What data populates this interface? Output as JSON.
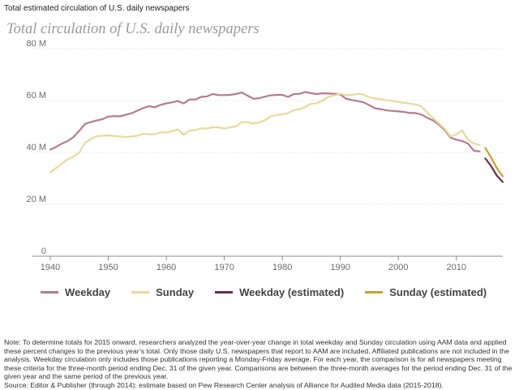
{
  "header": {
    "caption": "Total estimated circulation of U.S. daily newspapers"
  },
  "chart_data": {
    "type": "line",
    "title": "Total circulation of U.S. daily newspapers",
    "xlabel": "",
    "ylabel": "",
    "xlim": [
      1940,
      2018
    ],
    "ylim": [
      0,
      80
    ],
    "x_ticks": [
      1940,
      1950,
      1960,
      1970,
      1980,
      1990,
      2000,
      2010
    ],
    "y_ticks": [
      {
        "value": 0,
        "label": "0"
      },
      {
        "value": 20,
        "label": "20 M"
      },
      {
        "value": 40,
        "label": "40 M"
      },
      {
        "value": 60,
        "label": "60 M"
      },
      {
        "value": 80,
        "label": "80 M"
      }
    ],
    "series": [
      {
        "name": "Weekday",
        "color": "#b87a8c",
        "dashed": false,
        "x": [
          1940,
          1941,
          1942,
          1943,
          1944,
          1945,
          1946,
          1947,
          1948,
          1949,
          1950,
          1951,
          1952,
          1953,
          1954,
          1955,
          1956,
          1957,
          1958,
          1959,
          1960,
          1961,
          1962,
          1963,
          1964,
          1965,
          1966,
          1967,
          1968,
          1969,
          1970,
          1971,
          1972,
          1973,
          1974,
          1975,
          1976,
          1977,
          1978,
          1979,
          1980,
          1981,
          1982,
          1983,
          1984,
          1985,
          1986,
          1987,
          1988,
          1989,
          1990,
          1991,
          1992,
          1993,
          1994,
          1995,
          1996,
          1997,
          1998,
          1999,
          2000,
          2001,
          2002,
          2003,
          2004,
          2005,
          2006,
          2007,
          2008,
          2009,
          2010,
          2011,
          2012,
          2013,
          2014
        ],
        "values": [
          41.1,
          42.1,
          43.4,
          44.4,
          45.9,
          48.4,
          51.0,
          51.7,
          52.3,
          52.8,
          53.8,
          54.0,
          53.9,
          54.5,
          55.1,
          56.1,
          57.1,
          57.8,
          57.4,
          58.3,
          58.9,
          59.3,
          59.8,
          58.9,
          60.4,
          60.4,
          61.4,
          61.6,
          62.5,
          62.1,
          62.1,
          62.2,
          62.5,
          63.1,
          61.9,
          60.7,
          60.9,
          61.5,
          62.0,
          62.2,
          62.2,
          61.4,
          62.5,
          62.6,
          63.3,
          62.8,
          62.5,
          62.8,
          62.7,
          62.6,
          62.3,
          60.7,
          60.2,
          59.8,
          59.3,
          58.2,
          57.0,
          56.7,
          56.2,
          56.0,
          55.8,
          55.6,
          55.2,
          55.2,
          54.6,
          53.3,
          52.3,
          50.7,
          48.6,
          45.7,
          44.9,
          44.4,
          43.4,
          40.7,
          40.4
        ]
      },
      {
        "name": "Sunday",
        "color": "#ead99a",
        "dashed": false,
        "x": [
          1940,
          1941,
          1942,
          1943,
          1944,
          1945,
          1946,
          1947,
          1948,
          1949,
          1950,
          1951,
          1952,
          1953,
          1954,
          1955,
          1956,
          1957,
          1958,
          1959,
          1960,
          1961,
          1962,
          1963,
          1964,
          1965,
          1966,
          1967,
          1968,
          1969,
          1970,
          1971,
          1972,
          1973,
          1974,
          1975,
          1976,
          1977,
          1978,
          1979,
          1980,
          1981,
          1982,
          1983,
          1984,
          1985,
          1986,
          1987,
          1988,
          1989,
          1990,
          1991,
          1992,
          1993,
          1994,
          1995,
          1996,
          1997,
          1998,
          1999,
          2000,
          2001,
          2002,
          2003,
          2004,
          2005,
          2006,
          2007,
          2008,
          2009,
          2010,
          2011,
          2012,
          2013,
          2014
        ],
        "values": [
          32.4,
          34.0,
          35.7,
          37.3,
          38.5,
          39.9,
          43.7,
          45.2,
          46.3,
          46.4,
          46.6,
          46.3,
          46.2,
          45.9,
          46.2,
          46.4,
          47.2,
          47.0,
          47.0,
          47.8,
          47.7,
          48.2,
          48.9,
          46.8,
          48.4,
          48.6,
          49.3,
          49.2,
          49.7,
          49.7,
          49.2,
          49.7,
          50.0,
          51.7,
          51.7,
          51.1,
          51.6,
          52.4,
          53.9,
          54.4,
          54.7,
          55.2,
          56.3,
          56.7,
          57.6,
          58.8,
          58.9,
          60.1,
          61.5,
          62.0,
          62.6,
          62.1,
          62.2,
          62.6,
          62.3,
          61.2,
          60.8,
          60.5,
          60.1,
          59.9,
          59.4,
          59.1,
          58.8,
          58.5,
          57.8,
          55.3,
          53.2,
          51.2,
          49.1,
          46.2,
          46.9,
          48.5,
          44.8,
          43.5,
          42.8
        ]
      },
      {
        "name": "Weekday (estimated)",
        "color": "#6b2d4a",
        "dashed": false,
        "x": [
          2015,
          2016,
          2017,
          2018
        ],
        "values": [
          37.7,
          34.7,
          31.0,
          28.6
        ]
      },
      {
        "name": "Sunday (estimated)",
        "color": "#c9a227",
        "dashed": false,
        "x": [
          2015,
          2016,
          2017,
          2018
        ],
        "values": [
          41.7,
          38.0,
          33.9,
          30.8
        ]
      }
    ]
  },
  "footer": {
    "note": "Note: To determine totals for 2015 onward, researchers analyzed the year-over-year change in total weekday and Sunday circulation using AAM data and applied these percent changes to the previous year’s total. Only those daily U.S. newspapers that report to AAM are included. Affiliated publications are not included in the analysis. Weekday circulation only includes those publications reporting a Monday-Friday average. For each year, the comparison is for all newspapers meeting these criteria for the three-month period ending Dec. 31 of the given year. Comparisons are between the three-month averages for the period ending Dec. 31 of the given year and the same period of the previous year.",
    "source": "Source: Editor & Publisher (through 2014); estimate based on Pew Research Center analysis of Alliance for Audited Media data (2015-2018)."
  }
}
